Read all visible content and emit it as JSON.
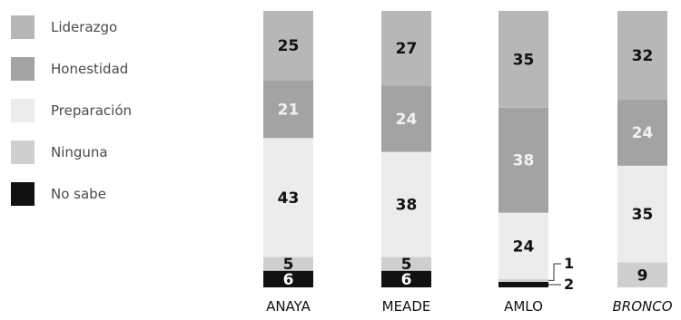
{
  "chart_data": {
    "type": "bar",
    "stacked": true,
    "orientation": "vertical",
    "categories": [
      "ANAYA",
      "MEADE",
      "AMLO",
      "BRONCO"
    ],
    "category_italic": [
      false,
      false,
      false,
      true
    ],
    "series": [
      {
        "name": "Liderazgo",
        "color": "#b7b7b7",
        "label_color": "#111111",
        "values": [
          25,
          27,
          35,
          32
        ]
      },
      {
        "name": "Honestidad",
        "color": "#a3a3a3",
        "label_color": "#f2f2f2",
        "values": [
          21,
          24,
          38,
          24
        ]
      },
      {
        "name": "Preparación",
        "color": "#ececec",
        "label_color": "#111111",
        "values": [
          43,
          38,
          24,
          35
        ]
      },
      {
        "name": "Ninguna",
        "color": "#cfcfcf",
        "label_color": "#111111",
        "values": [
          5,
          5,
          1,
          9
        ]
      },
      {
        "name": "No sabe",
        "color": "#111111",
        "label_color": "#ffffff",
        "values": [
          6,
          6,
          2,
          0
        ]
      }
    ],
    "value_labels": [
      [
        "25",
        "21",
        "43",
        "5",
        "6"
      ],
      [
        "27",
        "24",
        "38",
        "5",
        "6"
      ],
      [
        "35",
        "38",
        "24",
        "1",
        "2"
      ],
      [
        "32",
        "24",
        "35",
        "9",
        ""
      ]
    ],
    "legend": {
      "position": "left"
    },
    "grid": false,
    "ylim": [
      0,
      100
    ]
  }
}
